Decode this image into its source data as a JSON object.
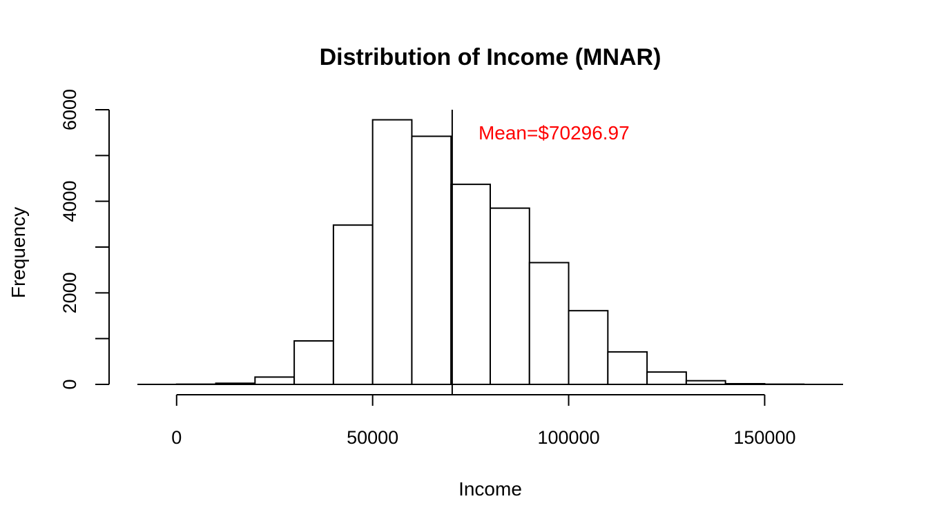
{
  "chart_data": {
    "type": "bar",
    "title": "Distribution of Income (MNAR)",
    "xlabel": "Income",
    "ylabel": "Frequency",
    "bin_edges": [
      0,
      10000,
      20000,
      30000,
      40000,
      50000,
      60000,
      70000,
      80000,
      90000,
      100000,
      110000,
      120000,
      130000,
      140000,
      150000,
      160000
    ],
    "values": [
      5,
      25,
      160,
      950,
      3480,
      5780,
      5420,
      4370,
      3850,
      2660,
      1610,
      710,
      270,
      80,
      15,
      5
    ],
    "xlim": [
      -10000,
      170000
    ],
    "ylim": [
      0,
      6000
    ],
    "x_ticks": [
      0,
      50000,
      100000,
      150000
    ],
    "y_ticks": [
      0,
      2000,
      4000,
      6000
    ],
    "x_tick_labels": [
      "0",
      "50000",
      "100000",
      "150000"
    ],
    "y_tick_labels": [
      "0",
      "2000",
      "4000",
      "6000"
    ],
    "mean_line": 70296.97,
    "annotation": {
      "text": "Mean=$70296.97",
      "color": "#ff0000",
      "x": 77000,
      "y": 5500
    },
    "grid": false,
    "legend": "none"
  }
}
